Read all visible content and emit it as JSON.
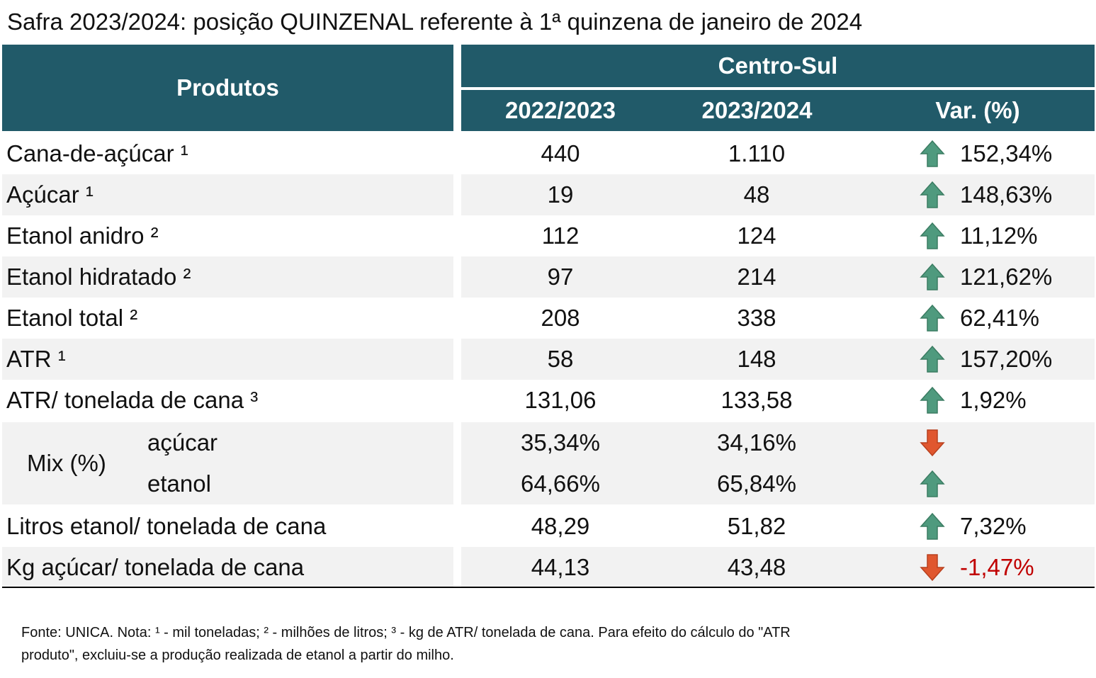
{
  "title": "Safra 2023/2024: posição QUINZENAL referente à 1ª quinzena de janeiro de 2024",
  "table": {
    "header": {
      "products": "Produtos",
      "region": "Centro-Sul",
      "columns": [
        "2022/2023",
        "2023/2024",
        "Var. (%)"
      ]
    },
    "rows": [
      {
        "label": "Cana-de-açúcar ¹",
        "values": [
          "440",
          "1.110"
        ],
        "var": "152,34%",
        "arrow": "up"
      },
      {
        "label": "Açúcar ¹",
        "values": [
          "19",
          "48"
        ],
        "var": "148,63%",
        "arrow": "up"
      },
      {
        "label": "Etanol anidro ²",
        "values": [
          "112",
          "124"
        ],
        "var": "11,12%",
        "arrow": "up"
      },
      {
        "label": "Etanol hidratado ²",
        "values": [
          "97",
          "214"
        ],
        "var": "121,62%",
        "arrow": "up"
      },
      {
        "label": "Etanol total ²",
        "values": [
          "208",
          "338"
        ],
        "var": "62,41%",
        "arrow": "up"
      },
      {
        "label": "ATR ¹",
        "values": [
          "58",
          "148"
        ],
        "var": "157,20%",
        "arrow": "up"
      },
      {
        "label": "ATR/ tonelada de cana ³",
        "values": [
          "131,06",
          "133,58"
        ],
        "var": "1,92%",
        "arrow": "up"
      },
      {
        "label": "Mix (%)",
        "subrows": [
          {
            "label": "açúcar",
            "values": [
              "35,34%",
              "34,16%"
            ],
            "arrow": "down"
          },
          {
            "label": "etanol",
            "values": [
              "64,66%",
              "65,84%"
            ],
            "arrow": "up"
          }
        ]
      },
      {
        "label": "Litros etanol/ tonelada de cana",
        "values": [
          "48,29",
          "51,82"
        ],
        "var": "7,32%",
        "arrow": "up"
      },
      {
        "label": "Kg açúcar/ tonelada de cana",
        "values": [
          "44,13",
          "43,48"
        ],
        "var": "-1,47%",
        "arrow": "down",
        "var_color": "#c00000"
      }
    ]
  },
  "footer": {
    "lines": [
      "Fonte: UNICA. Nota: ¹ - mil toneladas; ² - milhões de litros; ³ - kg de ATR/ tonelada de cana. Para efeito do cálculo do \"ATR",
      "produto\", excluiu-se a produção realizada de etanol a partir do milho."
    ]
  }
}
